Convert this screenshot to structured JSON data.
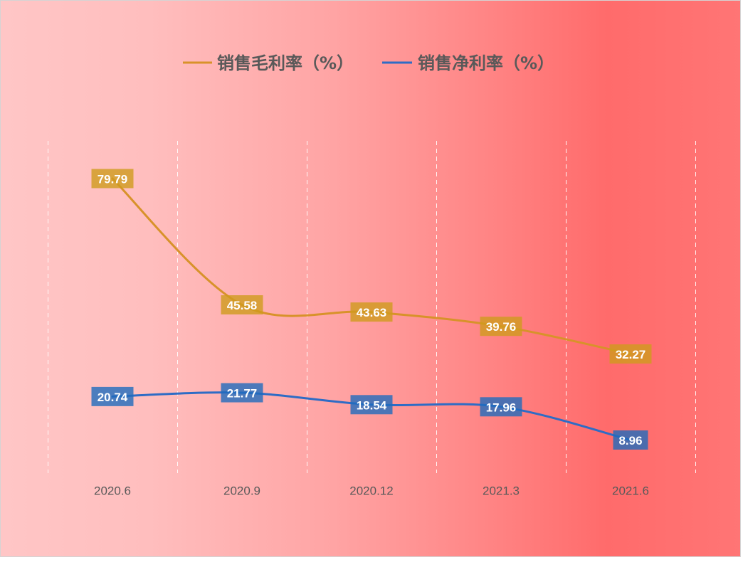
{
  "chart_data": {
    "type": "line",
    "categories": [
      "2020.6",
      "2020.9",
      "2020.12",
      "2021.3",
      "2021.6"
    ],
    "series": [
      {
        "name": "销售毛利率（%）",
        "values": [
          79.79,
          45.58,
          43.63,
          39.76,
          32.27
        ],
        "line_color": "#D8922A",
        "label_color": "#D09B1D"
      },
      {
        "name": "销售净利率（%）",
        "values": [
          20.74,
          21.77,
          18.54,
          17.96,
          8.96
        ],
        "line_color": "#2E6CC5",
        "label_color": "#1F6CBD"
      }
    ],
    "ylim": [
      0,
      90
    ],
    "grid": "vertical",
    "legend": "top-center"
  }
}
